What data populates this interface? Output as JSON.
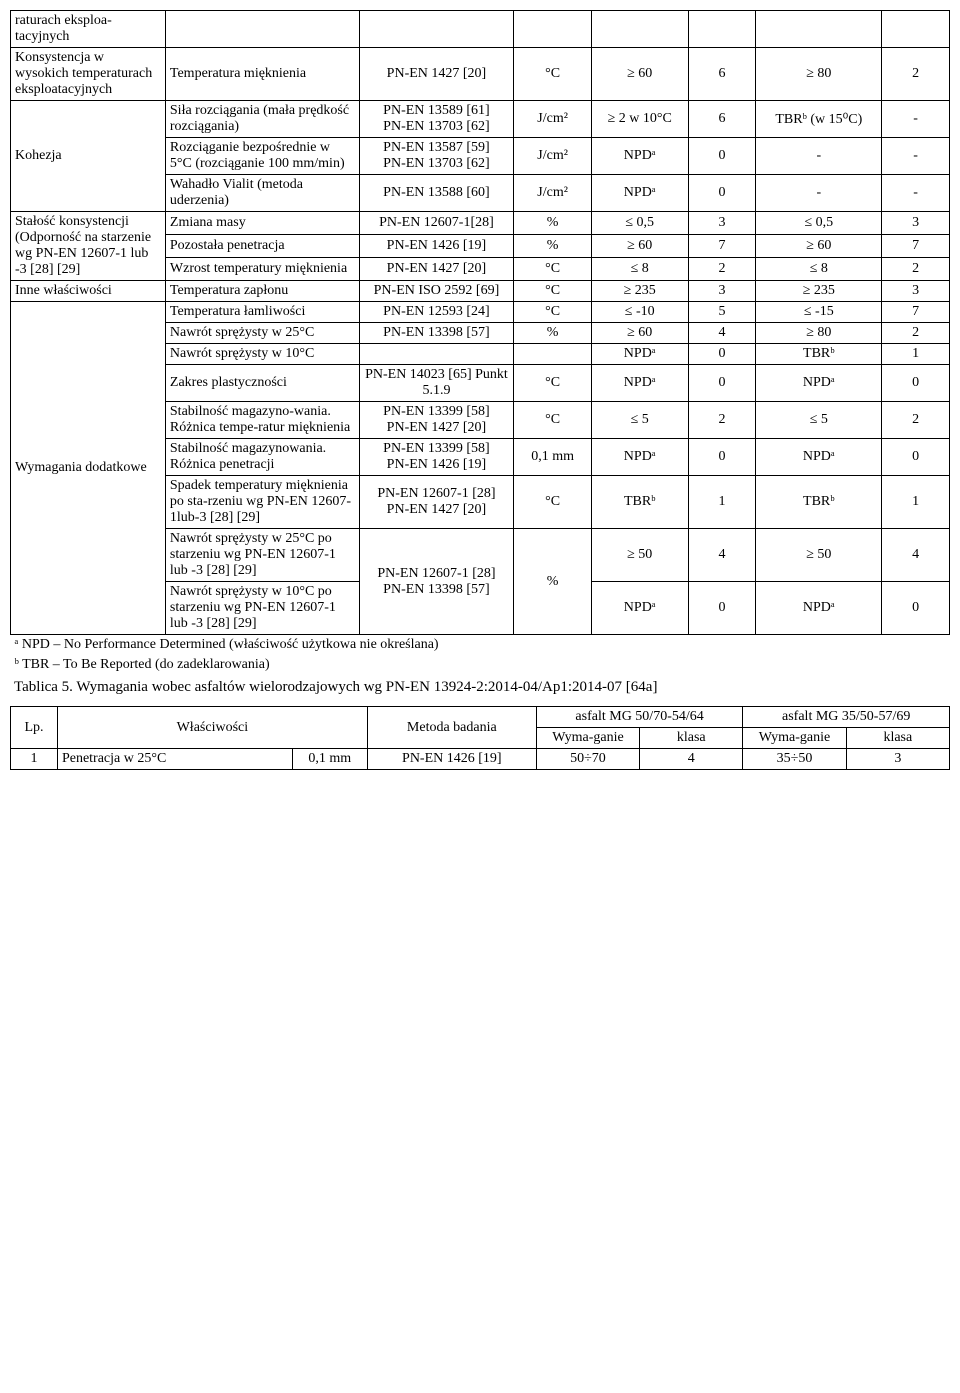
{
  "main_table": {
    "rows": [
      {
        "prop": "raturach eksploa-tacyjnych",
        "sub": "",
        "method": "",
        "unit": "",
        "v1": "",
        "v2": "",
        "v3": "",
        "v4": "",
        "prop_rowspan": 1
      },
      {
        "prop": "Konsystencja w wysokich temperaturach eksploatacyjnych",
        "sub": "Temperatura mięknienia",
        "method": "PN-EN 1427 [20]",
        "unit": "°C",
        "v1": "≥ 60",
        "v2": "6",
        "v3": "≥ 80",
        "v4": "2",
        "prop_rowspan": 1
      },
      {
        "prop": "Kohezja",
        "sub": "Siła rozciągania (mała prędkość rozciągania)",
        "method": "PN-EN 13589 [61]\nPN-EN 13703 [62]",
        "unit": "J/cm²",
        "v1": "≥ 2 w 10°C",
        "v2": "6",
        "v3": "TBRᵇ (w 15⁰C)",
        "v4": "-",
        "prop_rowspan": 3
      },
      {
        "sub": "Rozciąganie bezpośrednie w 5°C (rozciąganie 100 mm/min)",
        "method": "PN-EN 13587 [59]\nPN-EN 13703 [62]",
        "unit": "J/cm²",
        "v1": "NPDᵃ",
        "v2": "0",
        "v3": "-",
        "v4": "-"
      },
      {
        "sub": "Wahadło Vialit (metoda uderzenia)",
        "method": "PN-EN 13588 [60]",
        "unit": "J/cm²",
        "v1": "NPDᵃ",
        "v2": "0",
        "v3": "-",
        "v4": "-"
      },
      {
        "prop": "Stałość konsystencji (Odporność na starzenie wg PN-EN 12607-1 lub -3 [28] [29]",
        "sub": "Zmiana masy",
        "method": "PN-EN 12607-1[28]",
        "unit": "%",
        "v1": "≤ 0,5",
        "v2": "3",
        "v3": "≤ 0,5",
        "v4": "3",
        "prop_rowspan": 3
      },
      {
        "sub": "Pozostała penetracja",
        "method": "PN-EN 1426 [19]",
        "unit": "%",
        "v1": "≥ 60",
        "v2": "7",
        "v3": "≥ 60",
        "v4": "7"
      },
      {
        "sub": "Wzrost temperatury mięknienia",
        "method": "PN-EN 1427 [20]",
        "unit": "°C",
        "v1": "≤ 8",
        "v2": "2",
        "v3": "≤ 8",
        "v4": "2"
      },
      {
        "prop": "Inne właściwości",
        "sub": "Temperatura zapłonu",
        "method": "PN-EN ISO 2592 [69]",
        "unit": "°C",
        "v1": "≥ 235",
        "v2": "3",
        "v3": "≥ 235",
        "v4": "3",
        "prop_rowspan": 1
      },
      {
        "prop": "Wymagania dodatkowe",
        "sub": "Temperatura łamliwości",
        "method": "PN-EN 12593 [24]",
        "unit": "°C",
        "v1": "≤ -10",
        "v2": "5",
        "v3": "≤ -15",
        "v4": "7",
        "prop_rowspan": 9
      },
      {
        "sub": "Nawrót sprężysty w 25°C",
        "method": "PN-EN 13398 [57]",
        "unit": "%",
        "v1": "≥ 60",
        "v2": "4",
        "v3": "≥ 80",
        "v4": "2"
      },
      {
        "sub": "Nawrót sprężysty w 10°C",
        "method": "",
        "unit": "",
        "v1": "NPDᵃ",
        "v2": "0",
        "v3": "TBRᵇ",
        "v4": "1"
      },
      {
        "sub": "Zakres plastyczności",
        "method": "PN-EN 14023 [65] Punkt 5.1.9",
        "unit": "°C",
        "v1": "NPDᵃ",
        "v2": "0",
        "v3": "NPDᵃ",
        "v4": "0"
      },
      {
        "sub": "Stabilność magazyno-wania. Różnica tempe-ratur mięknienia",
        "method": "PN-EN 13399 [58]\nPN-EN 1427 [20]",
        "unit": "°C",
        "v1": "≤ 5",
        "v2": "2",
        "v3": "≤ 5",
        "v4": "2"
      },
      {
        "sub": "Stabilność magazynowania. Różnica penetracji",
        "method": "PN-EN 13399 [58]\nPN-EN 1426 [19]",
        "unit": "0,1 mm",
        "v1": "NPDᵃ",
        "v2": "0",
        "v3": "NPDᵃ",
        "v4": "0"
      },
      {
        "sub": "Spadek temperatury mięknienia po sta-rzeniu wg PN-EN 12607-1lub-3 [28] [29]",
        "method": "PN-EN 12607-1 [28]\nPN-EN 1427 [20]",
        "unit": "°C",
        "v1": "TBRᵇ",
        "v2": "1",
        "v3": "TBRᵇ",
        "v4": "1"
      },
      {
        "sub": "Nawrót sprężysty w 25°C po starzeniu wg PN-EN 12607-1 lub -3 [28] [29]",
        "method": "PN-EN 12607-1 [28]\nPN-EN 13398 [57]",
        "unit": "%",
        "v1": "≥ 50",
        "v2": "4",
        "v3": "≥ 50",
        "v4": "4",
        "method_rowspan": 2,
        "unit_rowspan": 2
      },
      {
        "sub": "Nawrót sprężysty w 10°C po starzeniu wg PN-EN 12607-1 lub -3 [28] [29]",
        "v1": "NPDᵃ",
        "v2": "0",
        "v3": "NPDᵃ",
        "v4": "0"
      }
    ]
  },
  "footnotes": {
    "a": "ᵃ NPD – No Performance Determined (właściwość użytkowa nie określana)",
    "b": "ᵇ TBR – To Be Reported (do zadeklarowania)"
  },
  "caption": "Tablica 5. Wymagania wobec asfaltów wielorodzajowych wg PN-EN 13924-2:2014-04/Ap1:2014-07 [64a]",
  "table2": {
    "headers": {
      "lp": "Lp.",
      "wlas": "Właściwości",
      "metoda": "Metoda badania",
      "asf1": "asfalt MG 50/70-54/64",
      "asf2": "asfalt MG 35/50-57/69",
      "wym": "Wyma-ganie",
      "klasa": "klasa"
    },
    "row1": {
      "lp": "1",
      "wlas": "Penetracja w 25°C",
      "unit": "0,1 mm",
      "method": "PN-EN 1426 [19]",
      "v1": "50÷70",
      "v2": "4",
      "v3": "35÷50",
      "v4": "3"
    }
  }
}
